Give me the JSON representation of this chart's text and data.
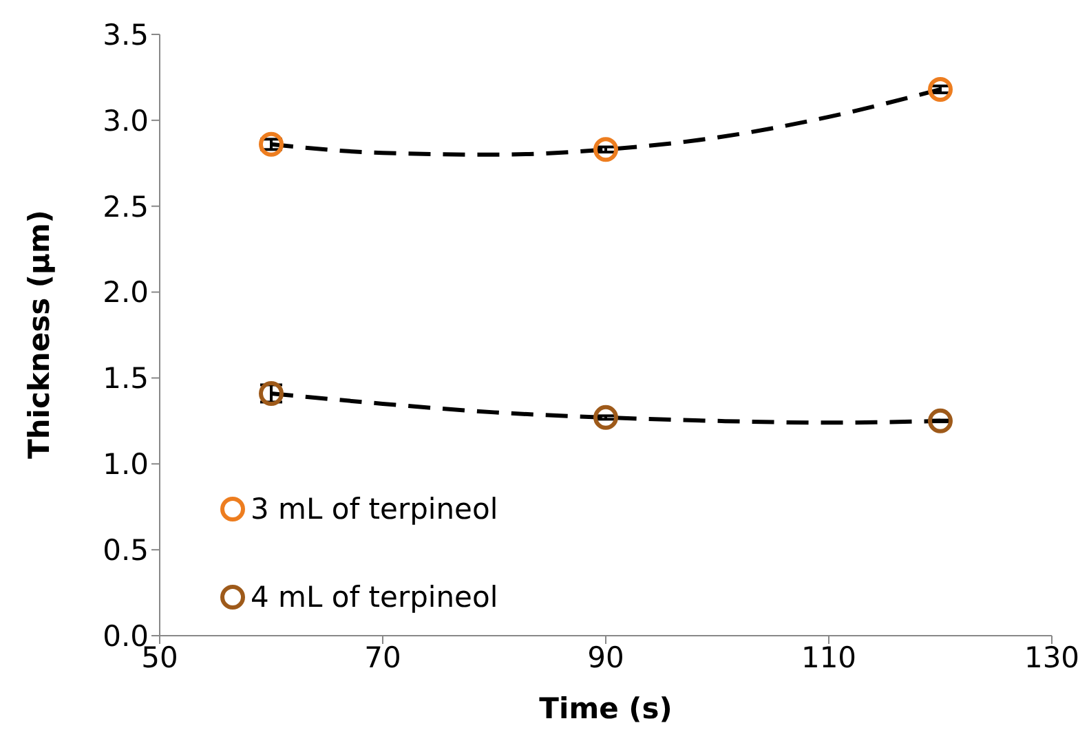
{
  "chart_data": {
    "type": "scatter",
    "xlabel": "Time (s)",
    "ylabel": "Thickness (µm)",
    "x": [
      60,
      90,
      120
    ],
    "series": [
      {
        "name": "3 mL of terpineol",
        "color": "#ed7d1f",
        "values": [
          2.86,
          2.83,
          3.18
        ],
        "errors": [
          0.03,
          0.015,
          0.02
        ],
        "marker": "circle"
      },
      {
        "name": "4 mL of terpineol",
        "color": "#9e5a1a",
        "values": [
          1.41,
          1.27,
          1.25
        ],
        "errors": [
          0.05,
          0.01,
          0.005
        ],
        "marker": "circle"
      },
      {
        "type": "line",
        "color": "#000000",
        "x": [
          60,
          70,
          80,
          90,
          100,
          110,
          120
        ],
        "values": [
          2.86,
          2.81,
          2.8,
          2.83,
          2.9,
          3.02,
          3.18
        ],
        "line_style": "dashed",
        "marker": "none"
      },
      {
        "type": "line",
        "color": "#000000",
        "x": [
          60,
          70,
          80,
          90,
          100,
          110,
          120
        ],
        "values": [
          1.41,
          1.35,
          1.3,
          1.27,
          1.25,
          1.24,
          1.25
        ],
        "line_style": "dashed",
        "marker": "none"
      }
    ],
    "xlim": [
      50,
      130
    ],
    "xticks": [
      50,
      70,
      90,
      110,
      130
    ],
    "ylim": [
      0,
      3.5
    ],
    "yticks": [
      {
        "value": 0,
        "label": "0.0"
      },
      0.5,
      {
        "value": 1,
        "label": "1.0"
      },
      1.5,
      {
        "value": 2,
        "label": "2.0"
      },
      2.5,
      {
        "value": 3,
        "label": "3.0"
      },
      3.5
    ],
    "grid": false,
    "legend": "bottom left"
  }
}
